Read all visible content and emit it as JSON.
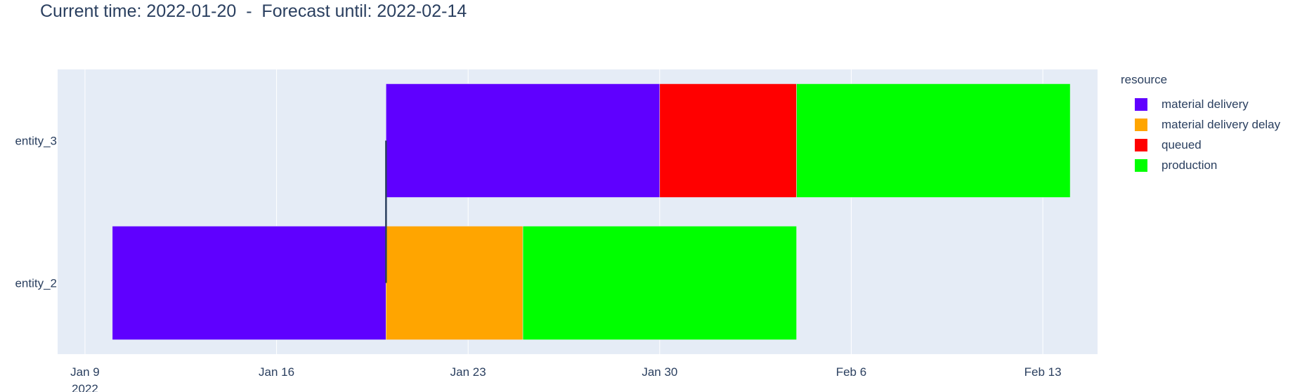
{
  "title": "Current time: 2022-01-20  -  Forecast until: 2022-02-14",
  "legend": {
    "title": "resource",
    "items": [
      {
        "label": "material delivery",
        "color": "#5f00ff"
      },
      {
        "label": "material delivery delay",
        "color": "#ffa500"
      },
      {
        "label": "queued",
        "color": "#ff0000"
      },
      {
        "label": "production",
        "color": "#00ff00"
      }
    ]
  },
  "chart_data": {
    "type": "bar",
    "orientation": "horizontal",
    "xaxis": {
      "type": "date",
      "range": [
        "2022-01-08",
        "2022-02-15"
      ],
      "ticks": [
        {
          "date": "2022-01-09",
          "label": "Jan 9",
          "sublabel": "2022"
        },
        {
          "date": "2022-01-16",
          "label": "Jan 16"
        },
        {
          "date": "2022-01-23",
          "label": "Jan 23"
        },
        {
          "date": "2022-01-30",
          "label": "Jan 30"
        },
        {
          "date": "2022-02-06",
          "label": "Feb 6"
        },
        {
          "date": "2022-02-13",
          "label": "Feb 13"
        }
      ]
    },
    "yaxis": {
      "categories": [
        "entity_3",
        "entity_2"
      ]
    },
    "grid": true,
    "legend_position": "right",
    "current_time": "2022-01-20",
    "tasks": [
      {
        "entity": "entity_3",
        "resource": "material delivery",
        "start": "2022-01-20",
        "end": "2022-01-30"
      },
      {
        "entity": "entity_3",
        "resource": "queued",
        "start": "2022-01-30",
        "end": "2022-02-04"
      },
      {
        "entity": "entity_3",
        "resource": "production",
        "start": "2022-02-04",
        "end": "2022-02-14"
      },
      {
        "entity": "entity_2",
        "resource": "material delivery",
        "start": "2022-01-10",
        "end": "2022-01-20"
      },
      {
        "entity": "entity_2",
        "resource": "material delivery delay",
        "start": "2022-01-20",
        "end": "2022-01-25"
      },
      {
        "entity": "entity_2",
        "resource": "production",
        "start": "2022-01-25",
        "end": "2022-02-04"
      }
    ]
  }
}
